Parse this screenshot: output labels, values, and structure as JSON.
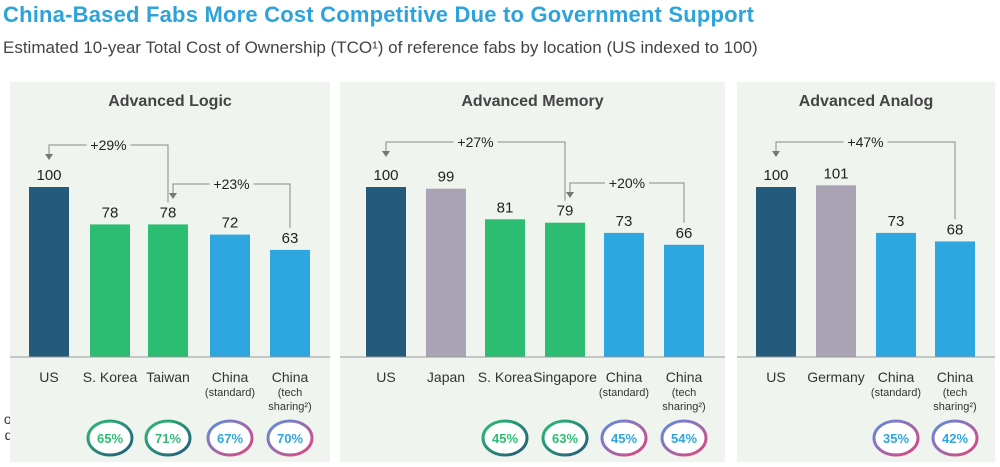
{
  "title": "China-Based Fabs More Cost Competitive Due to Government Support",
  "subtitle": "Estimated 10-year Total Cost of Ownership (TCO¹) of reference fabs by location (US indexed to 100)",
  "gap_row_label": [
    "of TCO gap",
    "due  to Gov.",
    "incentives"
  ],
  "colors": {
    "us": "#245a7c",
    "gray": "#a9a3b3",
    "green": "#2dbd72",
    "blue": "#2ea6df",
    "panel": "#eff5ee",
    "title": "#2ea3db"
  },
  "chart_data": [
    {
      "type": "bar",
      "title": "Advanced Logic",
      "ylim": [
        0,
        100
      ],
      "categories": [
        [
          "US"
        ],
        [
          "S. Korea"
        ],
        [
          "Taiwan"
        ],
        [
          "China",
          "(standard)"
        ],
        [
          "China",
          "(tech",
          "sharing²)"
        ]
      ],
      "values": [
        100,
        78,
        78,
        72,
        63
      ],
      "bar_colors": [
        "us",
        "green",
        "green",
        "blue",
        "blue"
      ],
      "gov_incentive_share": [
        null,
        "65%",
        "71%",
        "67%",
        "70%"
      ],
      "annotations": [
        {
          "label": "+29%",
          "from": 2,
          "to": 0
        },
        {
          "label": "+23%",
          "from": 4,
          "to": 2
        }
      ]
    },
    {
      "type": "bar",
      "title": "Advanced Memory",
      "ylim": [
        0,
        100
      ],
      "categories": [
        [
          "US"
        ],
        [
          "Japan"
        ],
        [
          "S. Korea"
        ],
        [
          "Singapore"
        ],
        [
          "China",
          "(standard)"
        ],
        [
          "China",
          "(tech",
          "sharing²)"
        ]
      ],
      "values": [
        100,
        99,
        81,
        79,
        73,
        66
      ],
      "bar_colors": [
        "us",
        "gray",
        "green",
        "green",
        "blue",
        "blue"
      ],
      "gov_incentive_share": [
        null,
        null,
        "45%",
        "63%",
        "45%",
        "54%"
      ],
      "annotations": [
        {
          "label": "+27%",
          "from": 3,
          "to": 0
        },
        {
          "label": "+20%",
          "from": 5,
          "to": 3
        }
      ]
    },
    {
      "type": "bar",
      "title": "Advanced Analog",
      "ylim": [
        0,
        100
      ],
      "categories": [
        [
          "US"
        ],
        [
          "Germany"
        ],
        [
          "China",
          "(standard)"
        ],
        [
          "China",
          "(tech",
          "sharing²)"
        ]
      ],
      "values": [
        100,
        101,
        73,
        68
      ],
      "bar_colors": [
        "us",
        "gray",
        "blue",
        "blue"
      ],
      "gov_incentive_share": [
        null,
        null,
        "35%",
        "42%"
      ],
      "annotations": [
        {
          "label": "+47%",
          "from": 3,
          "to": 0
        }
      ]
    }
  ]
}
